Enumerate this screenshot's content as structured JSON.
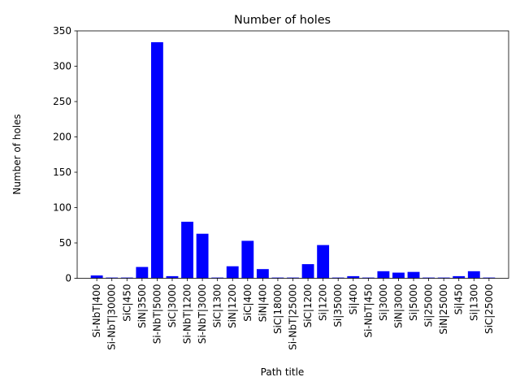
{
  "chart_data": {
    "type": "bar",
    "title": "Number of holes",
    "xlabel": "Path title",
    "ylabel": "Number of holes",
    "ylim": [
      0,
      350
    ],
    "yticks": [
      0,
      50,
      100,
      150,
      200,
      250,
      300,
      350
    ],
    "bar_color": "#0000ff",
    "grid": false,
    "categories": [
      "Si-NbT|400",
      "Si-NbT|30000",
      "SiC|450",
      "SiN|3500",
      "Si-NbT|5000",
      "SiC|3000",
      "Si-NbT|1200",
      "Si-NbT|3000",
      "SiC|1300",
      "SiN|1200",
      "SiC|400",
      "SiN|400",
      "SiC|18000",
      "Si-NbT|25000",
      "SiC|1200",
      "Si|1200",
      "Si|35000",
      "Si|400",
      "Si-NbT|450",
      "Si|3000",
      "SiN|3000",
      "Si|5000",
      "Si|25000",
      "SiN|25000",
      "Si|450",
      "Si|1300",
      "SiC|25000"
    ],
    "values": [
      4,
      1,
      1,
      16,
      334,
      3,
      80,
      63,
      1,
      17,
      53,
      13,
      1,
      1,
      20,
      47,
      1,
      3,
      1,
      10,
      8,
      9,
      1,
      1,
      3,
      10,
      1
    ]
  }
}
